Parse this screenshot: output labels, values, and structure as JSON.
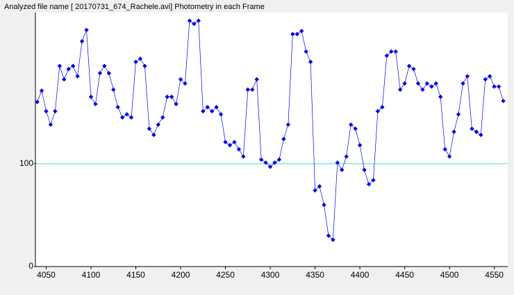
{
  "chart_data": {
    "type": "line",
    "title": "Analyzed file name [ 20170731_674_Rachele.avi]   Photometry in each Frame",
    "x": [
      4040,
      4045,
      4050,
      4055,
      4060,
      4065,
      4070,
      4075,
      4080,
      4085,
      4090,
      4095,
      4100,
      4105,
      4110,
      4115,
      4120,
      4125,
      4130,
      4135,
      4140,
      4145,
      4150,
      4155,
      4160,
      4165,
      4170,
      4175,
      4180,
      4185,
      4190,
      4195,
      4200,
      4205,
      4210,
      4215,
      4220,
      4225,
      4230,
      4235,
      4240,
      4245,
      4250,
      4255,
      4260,
      4265,
      4270,
      4275,
      4280,
      4285,
      4290,
      4295,
      4300,
      4305,
      4310,
      4315,
      4320,
      4325,
      4330,
      4335,
      4340,
      4345,
      4350,
      4355,
      4360,
      4365,
      4370,
      4375,
      4380,
      4385,
      4390,
      4395,
      4400,
      4405,
      4410,
      4415,
      4420,
      4425,
      4430,
      4435,
      4440,
      4445,
      4450,
      4455,
      4460,
      4465,
      4470,
      4475,
      4480,
      4485,
      4490,
      4495,
      4500,
      4505,
      4510,
      4515,
      4520,
      4525,
      4530,
      4535,
      4540,
      4545,
      4550,
      4555,
      4560
    ],
    "series": [
      {
        "color": "#0000e6",
        "values": [
          160,
          171,
          151,
          138,
          151,
          195,
          182,
          192,
          195,
          185,
          219,
          230,
          165,
          158,
          188,
          195,
          188,
          172,
          155,
          145,
          148,
          145,
          199,
          202,
          195,
          134,
          128,
          138,
          145,
          165,
          165,
          158,
          182,
          178,
          239,
          236,
          239,
          151,
          155,
          151,
          155,
          148,
          121,
          118,
          121,
          114,
          107,
          172,
          172,
          182,
          104,
          101,
          97,
          101,
          104,
          124,
          138,
          226,
          226,
          229,
          209,
          199,
          74,
          78,
          60,
          30,
          26,
          101,
          94,
          107,
          138,
          134,
          118,
          94,
          80,
          84,
          151,
          155,
          205,
          209,
          209,
          172,
          178,
          195,
          192,
          178,
          172,
          178,
          175,
          178,
          165,
          114,
          107,
          131,
          148,
          178,
          185,
          134,
          131,
          128,
          182,
          185,
          175,
          175,
          161
        ]
      }
    ],
    "xlim": [
      4038,
      4565
    ],
    "ylim": [
      0,
      247
    ],
    "xticks": [
      4050,
      4100,
      4150,
      4200,
      4250,
      4300,
      4350,
      4400,
      4450,
      4500,
      4550
    ],
    "yticks": [
      0,
      100
    ],
    "reference_line": {
      "value": 100,
      "color": "#40e0d0"
    }
  }
}
